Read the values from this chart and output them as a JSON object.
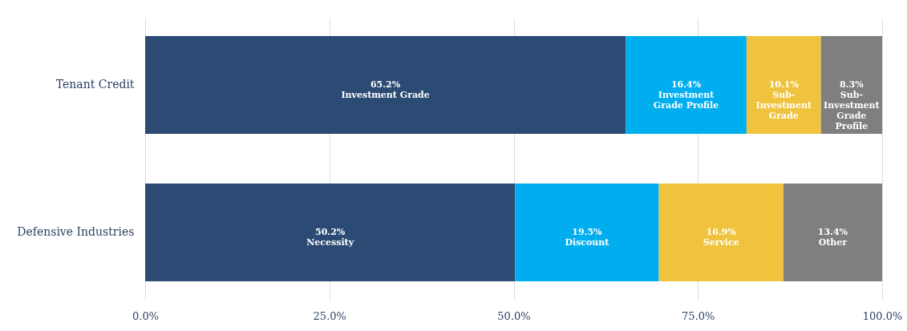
{
  "chart_data": {
    "type": "bar",
    "orientation": "horizontal",
    "stacked": true,
    "categories": [
      "Tenant Credit",
      "Defensive Industries"
    ],
    "series": [
      {
        "color": "#2b4a74",
        "values": [
          65.2,
          50.2
        ],
        "value_labels": [
          "65.2%\nInvestment Grade",
          "50.2%\nNecessity"
        ]
      },
      {
        "color": "#00aeef",
        "values": [
          16.4,
          19.5
        ],
        "value_labels": [
          "16.4%\nInvestment\nGrade Profile",
          "19.5%\nDiscount"
        ]
      },
      {
        "color": "#f0c33f",
        "values": [
          10.1,
          16.9
        ],
        "value_labels": [
          "10.1%\nSub-\nInvestment\nGrade",
          "16.9%\nService"
        ]
      },
      {
        "color": "#7f7f7f",
        "values": [
          8.3,
          13.4
        ],
        "value_labels": [
          "8.3%\nSub-\nInvestment\nGrade\nProfile",
          "13.4%\nOther"
        ]
      }
    ],
    "xlim": [
      0,
      100
    ],
    "xticks": [
      {
        "value": 0,
        "label": "0.0%"
      },
      {
        "value": 25,
        "label": "25.0%"
      },
      {
        "value": 50,
        "label": "50.0%"
      },
      {
        "value": 75,
        "label": "75.0%"
      },
      {
        "value": 100,
        "label": "100.0%"
      }
    ],
    "grid": "x"
  }
}
